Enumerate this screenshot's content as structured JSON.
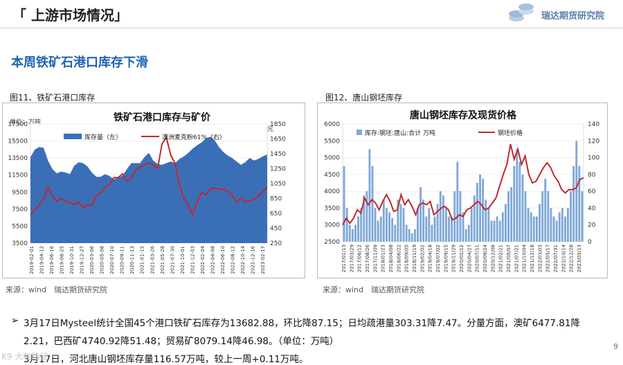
{
  "header": {
    "title": "「 上游市场情况」",
    "logo_text": "瑞达期货研究院"
  },
  "subheading": "本周铁矿石港口库存下滑",
  "figures": [
    {
      "caption": "图11、铁矿石港口库存",
      "source": "来源：wind　瑞达期货研究院"
    },
    {
      "caption": "图12、唐山钢坯库存",
      "source": "来源：wind　瑞达期货研究院"
    }
  ],
  "bullets": [
    "3月17日Mysteel统计全国45个港口铁矿石库存为13682.88，环比降87.15；日均疏港量303.31降7.47。分量方面，澳矿6477.81降",
    "2.21，巴西矿4740.92降51.48；贸易矿8079.14降46.98。（单位：万吨）",
    "3月17日，河北唐山钢坯库存量116.57万吨，较上一周+0.11万吨。"
  ],
  "page_number": "9",
  "watermark": "K9 大咖路径",
  "colors": {
    "accent_blue": "#1e64b4",
    "bar_fill": "#3a6fb7",
    "line_red": "#c0282d",
    "bar_light": "#7fa8d8"
  },
  "chart_data": [
    {
      "type": "area",
      "title": "铁矿石港口库存与矿价",
      "left_unit": "单位：万吨",
      "right_unit": "元",
      "ylim_left": [
        3500,
        17500
      ],
      "yticks_left": [
        "3500",
        "5500",
        "7500",
        "9500",
        "11500",
        "13500",
        "15500",
        "17500"
      ],
      "ylim_right": [
        250,
        1850
      ],
      "yticks_right": [
        "250",
        "450",
        "650",
        "850",
        "1050",
        "1250",
        "1450",
        "1650",
        "1850"
      ],
      "xticks": [
        "2019-02-01",
        "2019-04-12",
        "2019-06-16",
        "2019-08-25",
        "2019-10-31",
        "2019-12-27",
        "2020-03-06",
        "2020-05-08",
        "2020-07-10",
        "2020-09-11",
        "2020-11-13",
        "2021-01-15",
        "2021-03-26",
        "2021-05-28",
        "2021-07-30",
        "2021-10-01",
        "2021-12-03",
        "2022-02-04",
        "2022-04-08",
        "2022-06-10",
        "2022-08-12",
        "2022-10-14",
        "2022-12-16",
        "2023-02-17"
      ],
      "series": [
        {
          "name": "库存量（左）",
          "kind": "area",
          "axis": "left",
          "values": [
            13600,
            14500,
            14800,
            14700,
            13200,
            12200,
            11700,
            11900,
            11800,
            11600,
            12600,
            13000,
            12900,
            12500,
            11800,
            11300,
            11300,
            11600,
            11400,
            11000,
            11200,
            11400,
            12200,
            12900,
            12900,
            12900,
            13600,
            14100,
            13200,
            12800,
            12700,
            12900,
            13100,
            12900,
            13400,
            13700,
            14100,
            14600,
            15000,
            15300,
            15800,
            16000,
            15600,
            14800,
            14200,
            13800,
            13500,
            13100,
            12700,
            13000,
            13500,
            13200,
            13400,
            13700,
            13900
          ]
        },
        {
          "name": "澳洲麦克粉61%（右）",
          "kind": "line",
          "axis": "right",
          "values": [
            630,
            700,
            760,
            850,
            1000,
            880,
            810,
            850,
            810,
            790,
            770,
            800,
            720,
            770,
            760,
            890,
            920,
            1000,
            1030,
            1130,
            1130,
            1180,
            1080,
            1120,
            1230,
            1270,
            1300,
            1330,
            1300,
            1250,
            1580,
            1670,
            1430,
            1320,
            1030,
            850,
            760,
            630,
            800,
            930,
            900,
            980,
            990,
            980,
            970,
            950,
            890,
            800,
            860,
            800,
            820,
            840,
            880,
            940,
            1000
          ]
        }
      ]
    },
    {
      "type": "bar",
      "title": "唐山钢坯库存及现货价格",
      "ylim_left": [
        2500,
        6000
      ],
      "yticks_left": [
        "2500",
        "3000",
        "3500",
        "4000",
        "4500",
        "5000",
        "5500",
        "6000"
      ],
      "ylim_right": [
        0,
        140
      ],
      "yticks_right": [
        "0",
        "20",
        "40",
        "60",
        "80",
        "100",
        "120",
        "140"
      ],
      "xticks": [
        "2017/01/13",
        "2017/03/29",
        "2017/06/12",
        "2017/08/26",
        "2017/11/09",
        "2018/01/23",
        "2018/04/08",
        "2018/06/22",
        "2018/09/05",
        "2018/11/19",
        "2019/02/02",
        "2019/04/18",
        "2019/07/02",
        "2019/09/15",
        "2019/11/29",
        "2020/02/12",
        "2020/04/27",
        "2020/07/11",
        "2020/09/24",
        "2020/12/08",
        "2021/02/21",
        "2021/05/07",
        "2021/07/21",
        "2021/10/04",
        "2021/12/18",
        "2022/03/03",
        "2022/05/17",
        "2022/07/31",
        "2022/10/14",
        "2022/12/28",
        "2023/03/13"
      ],
      "series": [
        {
          "name": "库存:钢坯:唐山:合计 万吨",
          "kind": "bar",
          "axis": "right",
          "values": [
            90,
            40,
            20,
            15,
            20,
            30,
            40,
            55,
            60,
            110,
            90,
            40,
            25,
            30,
            50,
            40,
            35,
            28,
            20,
            50,
            45,
            40,
            20,
            15,
            10,
            15,
            40,
            65,
            50,
            30,
            40,
            20,
            30,
            45,
            60,
            55,
            40,
            30,
            30,
            60,
            95,
            60,
            35,
            15,
            20,
            40,
            55,
            70,
            80,
            75,
            50,
            40,
            25,
            25,
            30,
            25,
            35,
            45,
            60,
            65,
            90,
            110,
            95,
            80,
            60,
            40,
            35,
            30,
            30,
            45,
            60,
            75,
            60,
            40,
            30,
            25,
            35,
            40,
            30,
            40,
            60,
            90,
            120,
            90,
            60
          ]
        },
        {
          "name": "钢坯价格",
          "kind": "line",
          "axis": "left",
          "values": [
            3000,
            3200,
            3050,
            3200,
            3450,
            3350,
            3800,
            3600,
            3750,
            3650,
            3450,
            3700,
            3900,
            3700,
            3400,
            3450,
            3900,
            3600,
            3750,
            3550,
            3300,
            3600,
            3650,
            3600,
            3700,
            3300,
            3400,
            3500,
            3550,
            3450,
            3150,
            3200,
            3300,
            3250,
            3450,
            3500,
            3600,
            3700,
            3600,
            3450,
            3500,
            3650,
            3800,
            4150,
            4500,
            4800,
            5400,
            4950,
            5250,
            4800,
            5050,
            4500,
            4250,
            4300,
            4500,
            4700,
            4850,
            4700,
            4450,
            4300,
            4050,
            3950,
            4050,
            4050,
            4100,
            4350,
            4400
          ]
        }
      ]
    }
  ]
}
